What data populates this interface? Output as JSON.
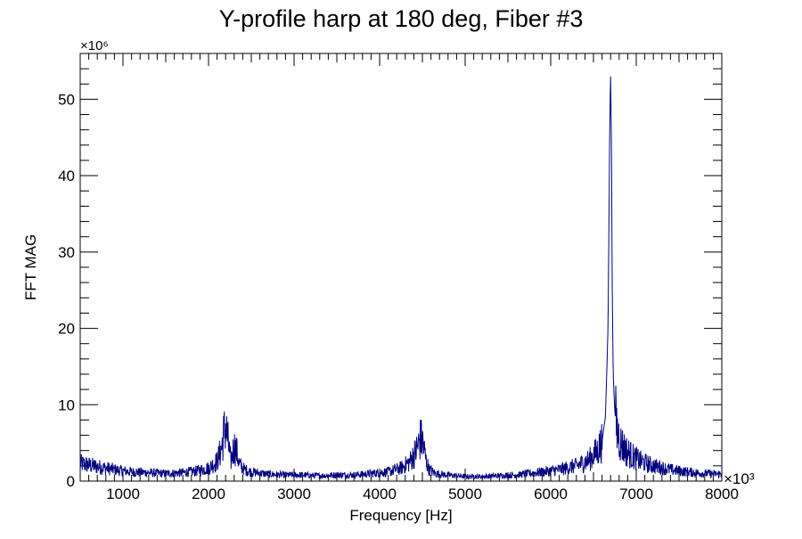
{
  "chart_data": {
    "type": "line",
    "title": "Y-profile harp at 180 deg, Fiber #3",
    "xlabel": "Frequency [Hz]",
    "ylabel": "FFT MAG",
    "x_multiplier": "×10³",
    "y_multiplier": "×10⁶",
    "xlim": [
      500,
      8000
    ],
    "ylim": [
      0,
      56
    ],
    "x_ticks": [
      1000,
      2000,
      3000,
      4000,
      5000,
      6000,
      7000,
      8000
    ],
    "x_tick_labels": [
      "1000",
      "2000",
      "3000",
      "4000",
      "5000",
      "6000",
      "7000",
      "8000"
    ],
    "y_ticks": [
      0,
      10,
      20,
      30,
      40,
      50
    ],
    "y_tick_labels": [
      "0",
      "10",
      "20",
      "30",
      "40",
      "50"
    ],
    "grid": false,
    "legend": "none",
    "series": [
      {
        "color": "#000080",
        "x": [
          500,
          650,
          800,
          950,
          1100,
          1300,
          1500,
          1700,
          1850,
          2000,
          2100,
          2150,
          2180,
          2200,
          2220,
          2260,
          2300,
          2330,
          2360,
          2420,
          2500,
          2700,
          2900,
          3100,
          3300,
          3500,
          3700,
          3900,
          4100,
          4250,
          4350,
          4420,
          4480,
          4510,
          4540,
          4580,
          4650,
          4800,
          5000,
          5200,
          5400,
          5600,
          5750,
          5900,
          6100,
          6300,
          6450,
          6550,
          6600,
          6640,
          6670,
          6690,
          6700,
          6710,
          6720,
          6730,
          6750,
          6780,
          6820,
          6880,
          6950,
          7050,
          7200,
          7400,
          7600,
          7800,
          8000
        ],
        "values": [
          2.3,
          2.0,
          1.7,
          1.4,
          1.2,
          1.1,
          1.0,
          1.1,
          1.3,
          1.7,
          2.6,
          4.2,
          6.3,
          7.2,
          5.8,
          2.5,
          4.6,
          3.8,
          2.2,
          1.5,
          1.2,
          0.9,
          0.8,
          0.8,
          0.7,
          0.8,
          0.8,
          1.0,
          1.2,
          1.7,
          2.5,
          3.8,
          5.6,
          4.8,
          2.8,
          1.5,
          1.0,
          0.8,
          0.6,
          0.6,
          0.7,
          0.8,
          1.0,
          1.2,
          1.5,
          2.0,
          2.8,
          4.0,
          5.2,
          8.5,
          20.0,
          46.0,
          53.0,
          44.0,
          25.0,
          14.0,
          9.0,
          6.5,
          5.0,
          4.0,
          3.3,
          2.6,
          2.0,
          1.5,
          1.2,
          1.0,
          0.9
        ]
      }
    ]
  }
}
